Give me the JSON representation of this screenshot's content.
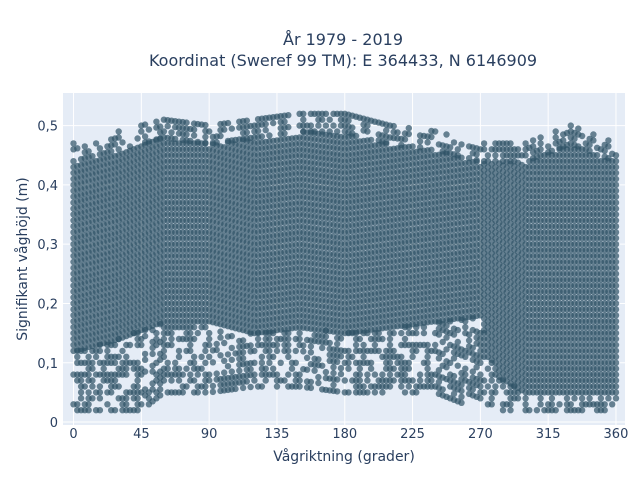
{
  "chart_data": {
    "type": "scatter",
    "title_line1": "År 1979 - 2019",
    "title_line2": "Koordinat (Sweref 99 TM): E 364433, N 6146909",
    "xlabel": "Vågriktning (grader)",
    "ylabel": "Signifikant våghöjd (m)",
    "xlim": [
      -7,
      366
    ],
    "ylim": [
      -0.005,
      0.555
    ],
    "xticks": [
      0,
      45,
      90,
      135,
      180,
      225,
      270,
      315,
      360
    ],
    "xtick_labels": [
      "0",
      "45",
      "90",
      "135",
      "180",
      "225",
      "270",
      "315",
      "360"
    ],
    "yticks": [
      0,
      0.1,
      0.2,
      0.3,
      0.4,
      0.5
    ],
    "ytick_labels": [
      "0",
      "0,1",
      "0,2",
      "0,3",
      "0,4",
      "0,5"
    ],
    "grid": true,
    "marker_color": "#2f5367",
    "marker_opacity": 0.7,
    "plot_background": "#e5ecf6",
    "series": [
      {
        "name": "",
        "envelope": {
          "x_step": 2.5,
          "x_range": [
            0,
            360
          ],
          "y_step": 0.01,
          "min_y": [
            [
              0,
              0.02
            ],
            [
              45,
              0.02
            ],
            [
              60,
              0.05
            ],
            [
              90,
              0.05
            ],
            [
              120,
              0.06
            ],
            [
              150,
              0.06
            ],
            [
              180,
              0.05
            ],
            [
              210,
              0.05
            ],
            [
              240,
              0.05
            ],
            [
              270,
              0.02
            ],
            [
              300,
              0.02
            ],
            [
              330,
              0.02
            ],
            [
              360,
              0.02
            ]
          ],
          "max_y": [
            [
              0,
              0.47
            ],
            [
              30,
              0.49
            ],
            [
              60,
              0.51
            ],
            [
              90,
              0.5
            ],
            [
              120,
              0.51
            ],
            [
              150,
              0.52
            ],
            [
              180,
              0.52
            ],
            [
              210,
              0.5
            ],
            [
              240,
              0.49
            ],
            [
              270,
              0.47
            ],
            [
              300,
              0.47
            ],
            [
              330,
              0.5
            ],
            [
              360,
              0.47
            ]
          ],
          "dense_lower": [
            [
              0,
              0.12
            ],
            [
              30,
              0.14
            ],
            [
              60,
              0.17
            ],
            [
              90,
              0.17
            ],
            [
              120,
              0.15
            ],
            [
              150,
              0.16
            ],
            [
              180,
              0.15
            ],
            [
              210,
              0.16
            ],
            [
              240,
              0.17
            ],
            [
              270,
              0.18
            ],
            [
              280,
              0.08
            ],
            [
              300,
              0.05
            ],
            [
              330,
              0.05
            ],
            [
              360,
              0.05
            ]
          ]
        }
      }
    ]
  }
}
